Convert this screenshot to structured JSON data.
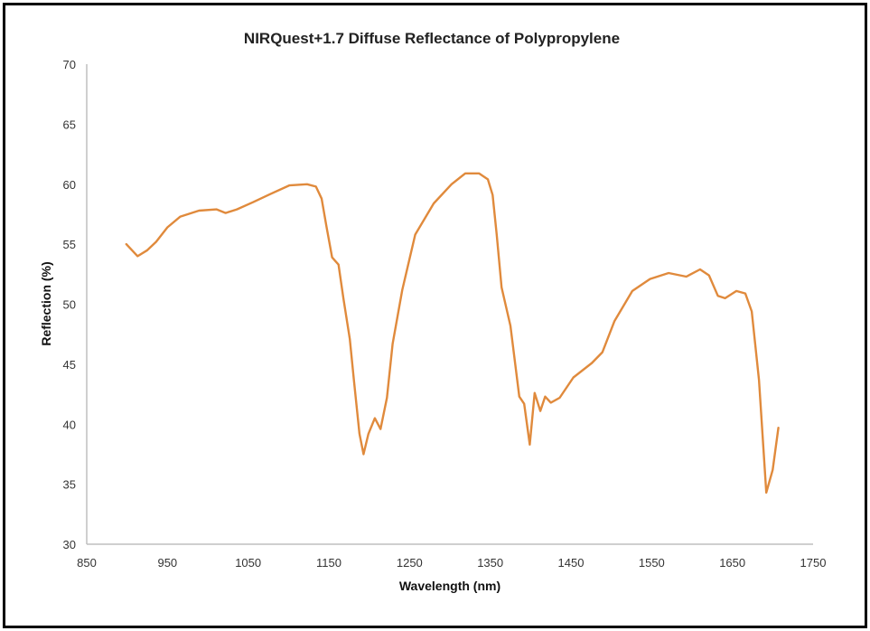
{
  "chart_data": {
    "type": "line",
    "title": "NIRQuest+1.7 Diffuse Reflectance of Polypropylene",
    "xlabel": "Wavelength (nm)",
    "ylabel": "Reflection (%)",
    "xlim": [
      850,
      1750
    ],
    "ylim": [
      30,
      70
    ],
    "xticks": [
      850,
      950,
      1050,
      1150,
      1250,
      1350,
      1450,
      1550,
      1650,
      1750
    ],
    "yticks": [
      30,
      35,
      40,
      45,
      50,
      55,
      60,
      65,
      70
    ],
    "grid": false,
    "line_color": "#E08A3C",
    "series": [
      {
        "name": "Polypropylene",
        "x": [
          899,
          913,
          925,
          936,
          950,
          966,
          989,
          1011,
          1022,
          1036,
          1056,
          1078,
          1101,
          1123,
          1134,
          1141,
          1147,
          1154,
          1158,
          1162,
          1168,
          1176,
          1181,
          1188,
          1193,
          1199,
          1207,
          1214,
          1222,
          1229,
          1241,
          1257,
          1280,
          1302,
          1319,
          1336,
          1347,
          1353,
          1358,
          1364,
          1375,
          1386,
          1392,
          1399,
          1405,
          1412,
          1418,
          1425,
          1436,
          1453,
          1476,
          1489,
          1504,
          1526,
          1548,
          1571,
          1593,
          1610,
          1621,
          1632,
          1641,
          1655,
          1666,
          1674,
          1683,
          1692,
          1700,
          1707
        ],
        "y": [
          55.0,
          54.0,
          54.5,
          55.2,
          56.4,
          57.3,
          57.8,
          57.9,
          57.6,
          57.9,
          58.5,
          59.2,
          59.9,
          60.0,
          59.8,
          58.8,
          56.5,
          53.9,
          53.6,
          53.3,
          50.5,
          47.1,
          43.7,
          39.2,
          37.5,
          39.2,
          40.5,
          39.6,
          42.2,
          46.7,
          51.2,
          55.8,
          58.4,
          60.0,
          60.9,
          60.9,
          60.4,
          59.1,
          55.8,
          51.4,
          48.2,
          42.3,
          41.7,
          38.3,
          42.6,
          41.1,
          42.3,
          41.8,
          42.2,
          43.9,
          45.1,
          46.0,
          48.6,
          51.1,
          52.1,
          52.6,
          52.3,
          52.9,
          52.4,
          50.7,
          50.5,
          51.1,
          50.9,
          49.4,
          43.7,
          34.3,
          36.2,
          39.7
        ]
      }
    ]
  }
}
